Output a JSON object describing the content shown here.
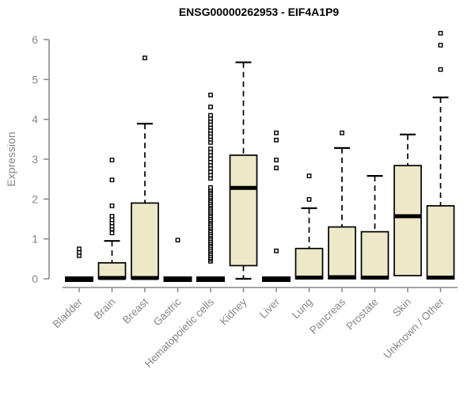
{
  "chart_data": {
    "type": "boxplot",
    "title": "ENSG00000262953 - EIF4A1P9",
    "xlabel": "",
    "ylabel": "Expression",
    "ylim": [
      0,
      6.2
    ],
    "yticks": [
      0,
      1,
      2,
      3,
      4,
      5,
      6
    ],
    "grid": false,
    "legend": "none",
    "box_fill": "#ece8c8",
    "box_stroke": "#000000",
    "axis_color": "#878787",
    "categories": [
      "Bladder",
      "Brain",
      "Breast",
      "Gastric",
      "Hematopoietic cells",
      "Kidney",
      "Liver",
      "Lung",
      "Pancreas",
      "Prostate",
      "Skin",
      "Unknown / Other"
    ],
    "boxes": [
      {
        "category": "Bladder",
        "whisker_low": 0,
        "q1": 0,
        "median": 0,
        "q3": 0,
        "whisker_high": 0,
        "outliers": [
          0.58,
          0.66,
          0.75
        ]
      },
      {
        "category": "Brain",
        "whisker_low": 0,
        "q1": 0,
        "median": 0.02,
        "q3": 0.4,
        "whisker_high": 0.95,
        "outliers": [
          1.15,
          1.25,
          1.32,
          1.4,
          1.48,
          1.57,
          1.83,
          2.48,
          2.98
        ]
      },
      {
        "category": "Breast",
        "whisker_low": 0,
        "q1": 0,
        "median": 0.02,
        "q3": 1.9,
        "whisker_high": 3.89,
        "outliers": [
          5.54
        ]
      },
      {
        "category": "Gastric",
        "whisker_low": 0,
        "q1": 0,
        "median": 0,
        "q3": 0,
        "whisker_high": 0,
        "outliers": [
          0.97
        ]
      },
      {
        "category": "Hematopoietic cells",
        "whisker_low": 0,
        "q1": 0,
        "median": 0,
        "q3": 0,
        "whisker_high": 0,
        "outliers": [
          0.44,
          0.49,
          0.53,
          0.58,
          0.63,
          0.68,
          0.72,
          0.77,
          0.82,
          0.87,
          0.91,
          0.96,
          1.01,
          1.06,
          1.1,
          1.15,
          1.2,
          1.25,
          1.29,
          1.34,
          1.39,
          1.44,
          1.48,
          1.53,
          1.58,
          1.63,
          1.67,
          1.72,
          1.77,
          1.82,
          1.86,
          1.91,
          1.96,
          2.01,
          2.05,
          2.1,
          2.15,
          2.2,
          2.24,
          2.29,
          2.52,
          2.6,
          2.68,
          2.77,
          2.85,
          2.93,
          3.01,
          3.1,
          3.18,
          3.26,
          3.42,
          3.5,
          3.57,
          3.65,
          3.72,
          3.8,
          3.87,
          3.95,
          4.02,
          4.1,
          4.31,
          4.61
        ]
      },
      {
        "category": "Kidney",
        "whisker_low": 0,
        "q1": 0.33,
        "median": 2.28,
        "q3": 3.1,
        "whisker_high": 5.43,
        "outliers": []
      },
      {
        "category": "Liver",
        "whisker_low": 0,
        "q1": 0,
        "median": 0,
        "q3": 0,
        "whisker_high": 0,
        "outliers": [
          0.7,
          2.78,
          2.98,
          3.48,
          3.66
        ]
      },
      {
        "category": "Lung",
        "whisker_low": 0,
        "q1": 0,
        "median": 0.03,
        "q3": 0.76,
        "whisker_high": 1.77,
        "outliers": [
          1.99,
          2.58
        ]
      },
      {
        "category": "Pancreas",
        "whisker_low": 0,
        "q1": 0,
        "median": 0.04,
        "q3": 1.3,
        "whisker_high": 3.28,
        "outliers": [
          3.66
        ]
      },
      {
        "category": "Prostate",
        "whisker_low": 0,
        "q1": 0,
        "median": 0.03,
        "q3": 1.18,
        "whisker_high": 2.58,
        "outliers": []
      },
      {
        "category": "Skin",
        "whisker_low": 0.05,
        "q1": 0.08,
        "median": 1.57,
        "q3": 2.84,
        "whisker_high": 3.62,
        "outliers": []
      },
      {
        "category": "Unknown / Other",
        "whisker_low": 0,
        "q1": 0,
        "median": 0.03,
        "q3": 1.83,
        "whisker_high": 4.55,
        "outliers": [
          5.25,
          5.86,
          6.16
        ]
      }
    ]
  }
}
